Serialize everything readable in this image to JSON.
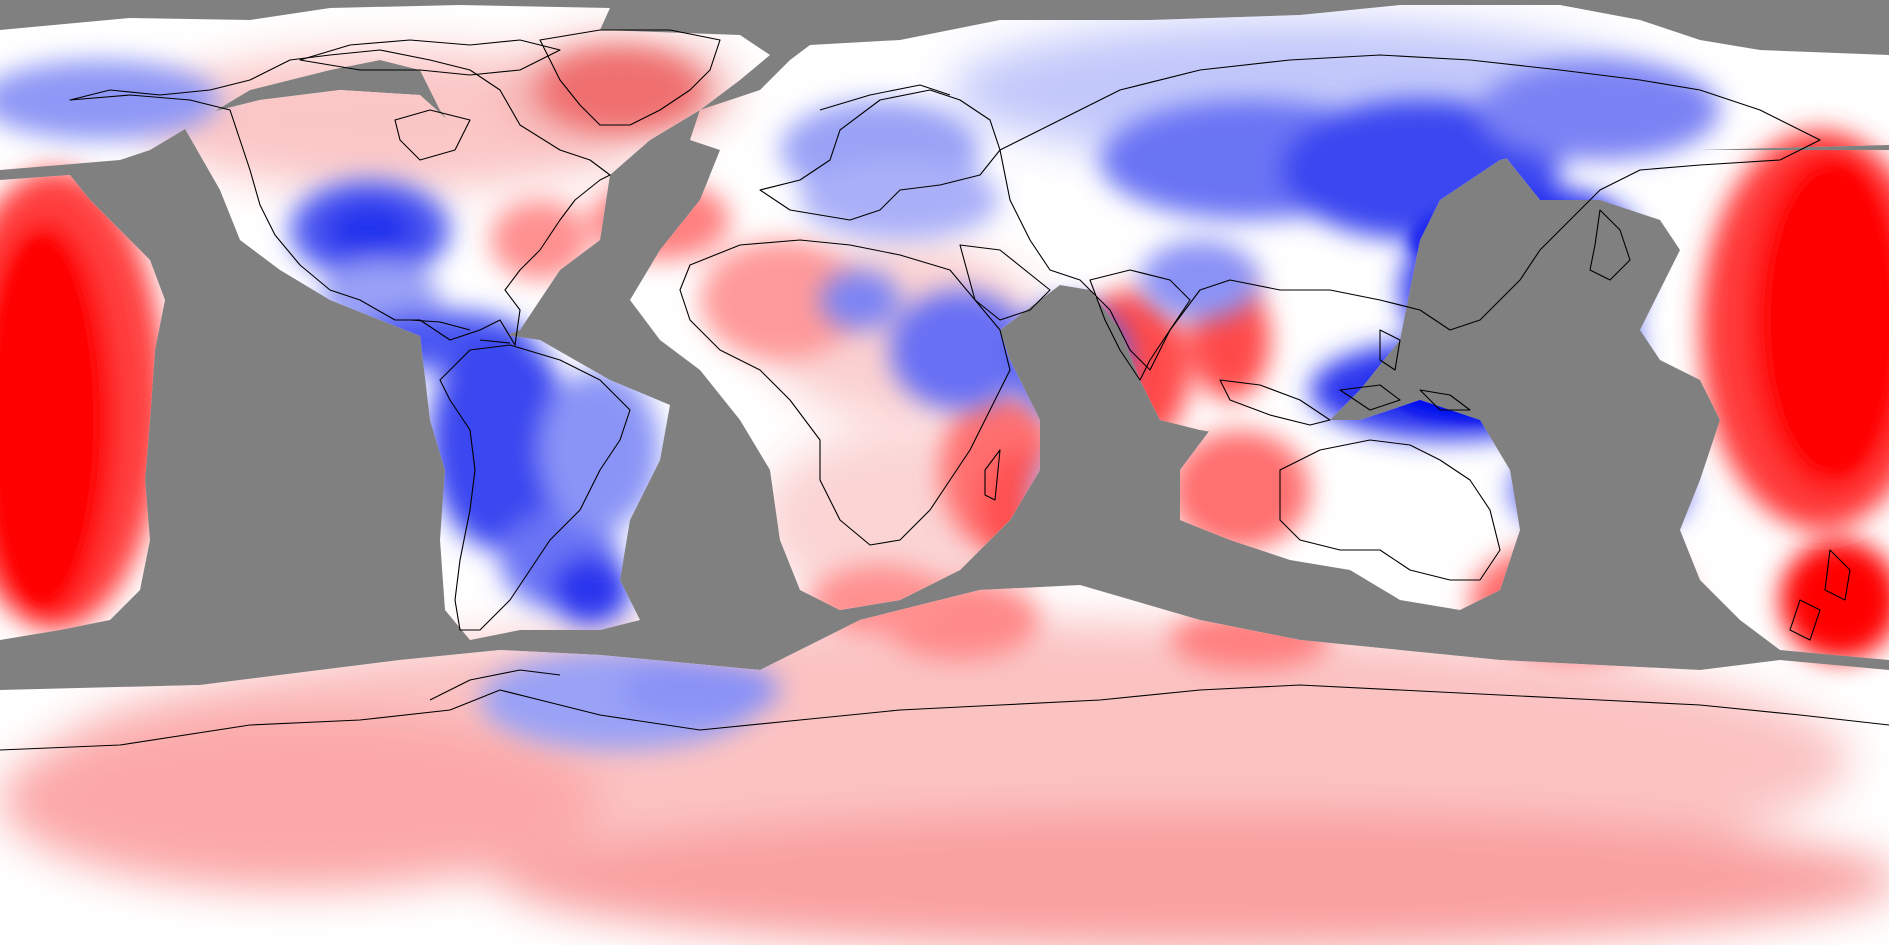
{
  "map": {
    "projection": "equirectangular",
    "palette": {
      "mask": "#808080",
      "high": "#ff0000",
      "low": "#0000ff",
      "neutral": "#ffffff",
      "coastline": "#000000"
    }
  }
}
